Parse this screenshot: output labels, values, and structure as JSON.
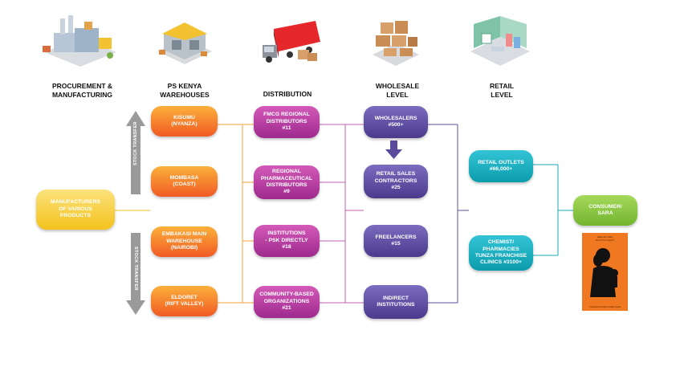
{
  "headers": [
    {
      "id": "procurement",
      "text": "PROCUREMENT &\nMANUFACTURING"
    },
    {
      "id": "warehouses",
      "text": "PS KENYA\nWAREHOUSES"
    },
    {
      "id": "distribution",
      "text": "DISTRIBUTION"
    },
    {
      "id": "wholesale",
      "text": "WHOLESALE\nLEVEL"
    },
    {
      "id": "retail",
      "text": "RETAIL\nLEVEL"
    }
  ],
  "manufacturers": "MANUFACTURERS\nOF VARIOUS\nPRODUCTS",
  "warehouses": [
    {
      "label": "KISUMU\n(NYANZA)"
    },
    {
      "label": "MOMBASA\n(COAST)"
    },
    {
      "label": "EMBAKASI MAIN\nWAREHOUSE\n(NAIROBI)"
    },
    {
      "label": "ELDORET\n(RIFT VALLEY)"
    }
  ],
  "distribution": [
    {
      "label": "FMCG REGIONAL\nDISTRIBUTORS\n#11"
    },
    {
      "label": "REGIONAL\nPHARMACEUTICAL\nDISTRIBUTORS\n#9"
    },
    {
      "label": "INSTITUTIONS\n- PSK DIRECTLY\n#18"
    },
    {
      "label": "COMMUNITY-BASED\nORGANIZATIONS\n#21"
    }
  ],
  "wholesale": [
    {
      "label": "WHOLESALERS\n#500+"
    },
    {
      "label": "RETAIL SALES\nCONTRACTORS\n#25"
    },
    {
      "label": "FREELANCERS\n#15"
    },
    {
      "label": "INDIRECT\nINSTITUTIONS"
    }
  ],
  "retail": [
    {
      "label": "RETAIL OUTLETS\n#66,000+"
    },
    {
      "label": "CHEMIST/\nPHARMACIES\nTUNZA FRANCHISE\nCLINICS #3100+"
    }
  ],
  "consumer": "CONSUMER/\nSARA",
  "stock_transfer_label": "STOCK TRANSFER",
  "book": {
    "top_text": "Hallo Are Sara\nDon't You Know?",
    "bottom_text": "Connected to Sara's health needs"
  },
  "colors": {
    "orange": "#f15a24",
    "magenta": "#9e2a8e",
    "purple": "#4b3a8c",
    "teal": "#0a9cad",
    "green": "#72b52f",
    "yellow": "#f4c21d",
    "arrow_gray": "#9a9a9a"
  },
  "illustrations": [
    "factory-icon",
    "warehouse-icon",
    "truck-icon",
    "boxes-icon",
    "shop-icon"
  ]
}
